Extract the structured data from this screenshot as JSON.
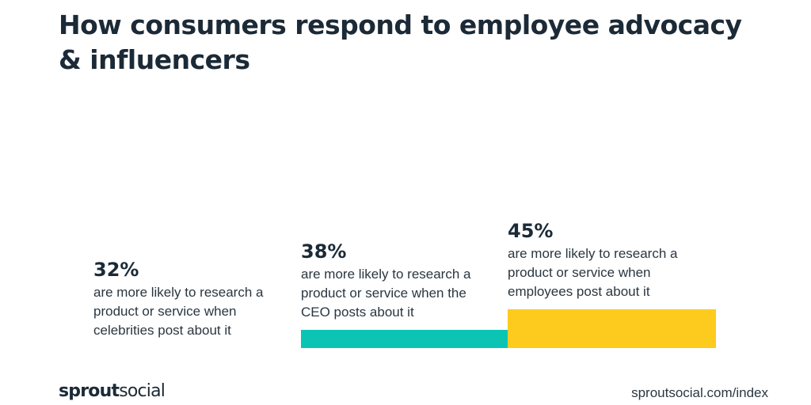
{
  "title": "How consumers respond to employee advocacy & influencers",
  "chart_data": {
    "type": "bar",
    "categories": [
      "celebrities",
      "the CEO",
      "employees"
    ],
    "values": [
      32,
      38,
      45
    ],
    "value_labels": [
      "32%",
      "38%",
      "45%"
    ],
    "descriptions": [
      "are more likely to research a product or service when celebrities post about it",
      "are more likely to research a product or service when the CEO posts about it",
      "are more likely to research a product or service when employees post about it"
    ],
    "colors": [
      "#136a7e",
      "#0cc4b4",
      "#fccb1e"
    ],
    "title": "How consumers respond to employee advocacy & influencers",
    "xlabel": "",
    "ylabel": "",
    "grid": false
  },
  "footer": {
    "brand_bold": "sprout",
    "brand_regular": "social",
    "source": "sproutsocial.com/index"
  }
}
